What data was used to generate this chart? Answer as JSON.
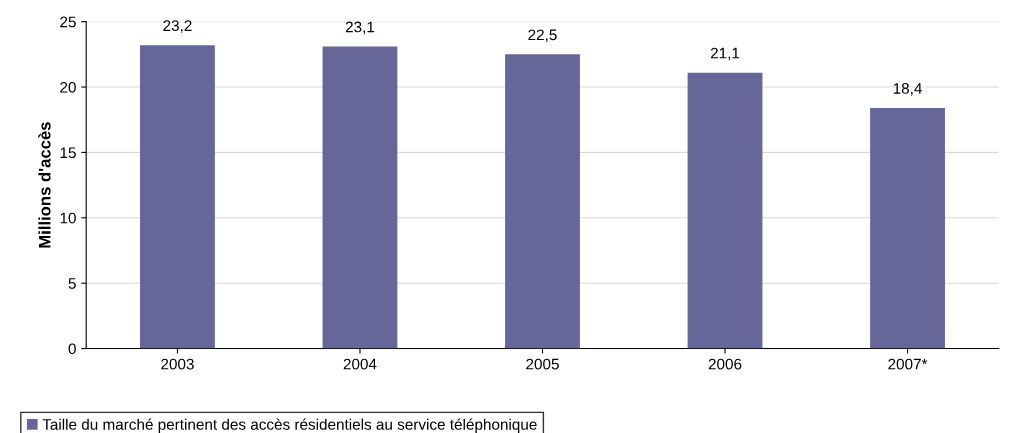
{
  "chart_data": {
    "type": "bar",
    "ylabel": "Millions d'accès",
    "categories": [
      "2003",
      "2004",
      "2005",
      "2006",
      "2007*"
    ],
    "series": [
      {
        "name": "Taille du marché pertinent des accès résidentiels au service téléphonique",
        "color": "#666699",
        "values": [
          23.2,
          23.1,
          22.5,
          21.1,
          18.4
        ],
        "value_labels": [
          "23,2",
          "23,1",
          "22,5",
          "21,1",
          "18,4"
        ]
      }
    ],
    "ylim": [
      0,
      25
    ],
    "yticks": [
      0,
      5,
      10,
      15,
      20,
      25
    ],
    "grid": "y",
    "legend": "bottom left"
  }
}
